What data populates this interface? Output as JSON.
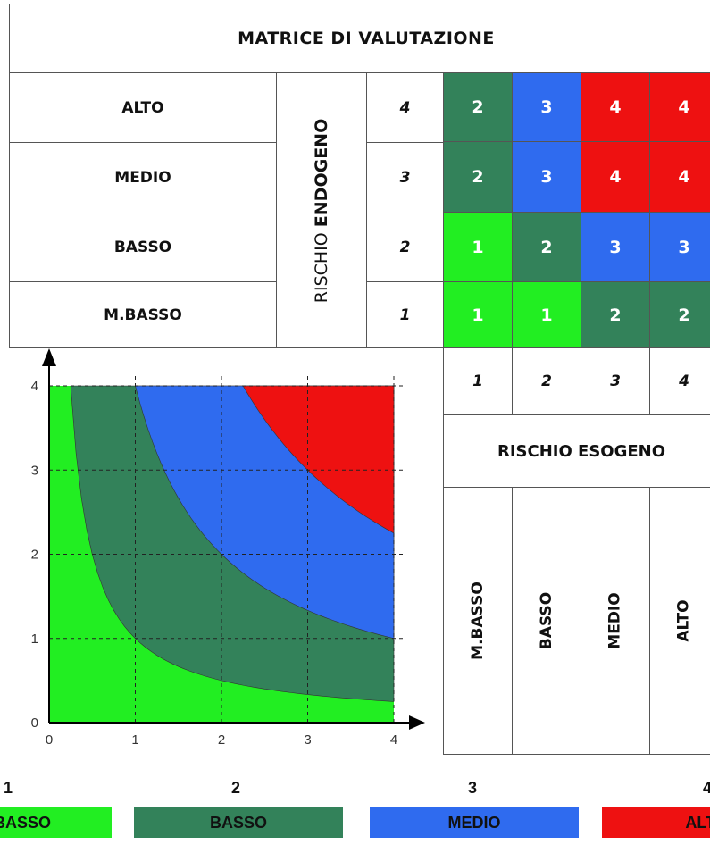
{
  "matrix_title": "MATRICE DI VALUTAZIONE",
  "endo_levels": [
    "ALTO",
    "MEDIO",
    "BASSO",
    "M.BASSO"
  ],
  "endo_axis": {
    "prefix": "RISCHIO ",
    "bold": "ENDOGENO"
  },
  "endo_scale": [
    "4",
    "3",
    "2",
    "1"
  ],
  "matrix": [
    [
      "2",
      "3",
      "4",
      "4"
    ],
    [
      "2",
      "3",
      "4",
      "4"
    ],
    [
      "1",
      "2",
      "3",
      "3"
    ],
    [
      "1",
      "1",
      "2",
      "2"
    ]
  ],
  "eso_scale": [
    "1",
    "2",
    "3",
    "4"
  ],
  "eso_title": "RISCHIO ESOGENO",
  "eso_levels": [
    "M.BASSO",
    "BASSO",
    "MEDIO",
    "ALTO"
  ],
  "colors": {
    "1": "#22ee22",
    "2": "#33825a",
    "3": "#2f6bef",
    "4": "#ee1111"
  },
  "chart_data": {
    "type": "area",
    "x_ticks": [
      "0",
      "1",
      "2",
      "3",
      "4"
    ],
    "y_ticks": [
      "0",
      "1",
      "2",
      "3",
      "4"
    ],
    "xlim": [
      0,
      4
    ],
    "ylim": [
      0,
      4
    ],
    "grid": true,
    "regions": [
      {
        "level": "1",
        "color": "#22ee22",
        "boundary": "x*y < 1"
      },
      {
        "level": "2",
        "color": "#33825a",
        "boundary": "1 <= x*y < 4"
      },
      {
        "level": "3",
        "color": "#2f6bef",
        "boundary": "4 <= x*y < 9"
      },
      {
        "level": "4",
        "color": "#ee1111",
        "boundary": "x*y >= 9"
      }
    ],
    "boundary_points": [
      {
        "level": "1",
        "x": [
          0.25,
          0.5,
          1,
          2,
          3,
          4
        ],
        "y": [
          4,
          2,
          1,
          0.5,
          0.33,
          0.25
        ]
      },
      {
        "level": "2",
        "x": [
          1,
          2,
          3,
          4
        ],
        "y": [
          4,
          2,
          1.33,
          1
        ]
      },
      {
        "level": "3",
        "x": [
          2.25,
          3,
          4
        ],
        "y": [
          4,
          3,
          2.25
        ]
      }
    ]
  },
  "legend": [
    {
      "num": "1",
      "label": "M.BASSO",
      "color": "#22ee22"
    },
    {
      "num": "2",
      "label": "BASSO",
      "color": "#33825a"
    },
    {
      "num": "3",
      "label": "MEDIO",
      "color": "#2f6bef"
    },
    {
      "num": "4",
      "label": "ALTO",
      "color": "#ee1111"
    }
  ]
}
